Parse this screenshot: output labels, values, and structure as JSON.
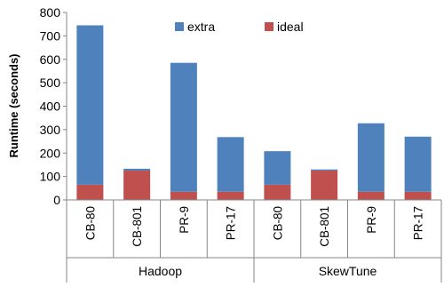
{
  "chart_data": {
    "type": "bar",
    "stacked": true,
    "ylabel": "Runtime (seconds)",
    "ylim": [
      0,
      800
    ],
    "yticks": [
      0,
      100,
      200,
      300,
      400,
      500,
      600,
      700,
      800
    ],
    "grid": false,
    "legend_position": "top-center",
    "groups": [
      {
        "name": "Hadoop",
        "categories": [
          "CB-80",
          "CB-801",
          "PR-9",
          "PR-17"
        ]
      },
      {
        "name": "SkewTune",
        "categories": [
          "CB-80",
          "CB-801",
          "PR-9",
          "PR-17"
        ]
      }
    ],
    "categories": [
      "CB-80",
      "CB-801",
      "PR-9",
      "PR-17",
      "CB-80",
      "CB-801",
      "PR-9",
      "PR-17"
    ],
    "series": [
      {
        "name": "ideal",
        "color": "#c0504d",
        "values": [
          65,
          125,
          35,
          35,
          65,
          125,
          35,
          35
        ]
      },
      {
        "name": "extra",
        "color": "#4f81bd",
        "values": [
          680,
          8,
          550,
          233,
          143,
          5,
          292,
          235
        ]
      }
    ],
    "legend_order": [
      "extra",
      "ideal"
    ]
  }
}
